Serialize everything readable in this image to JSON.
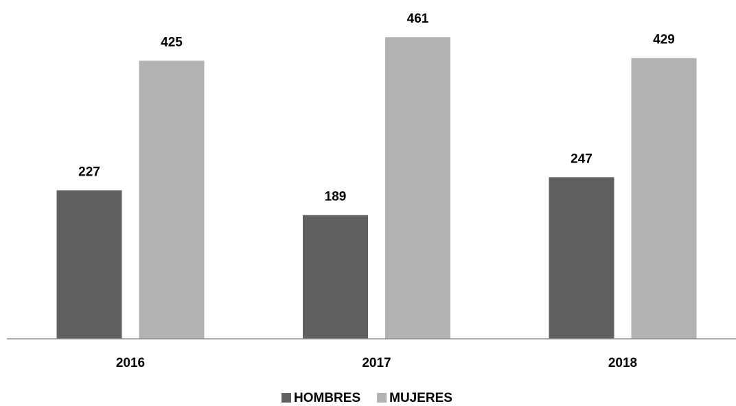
{
  "chart_data": {
    "type": "bar",
    "categories": [
      "2016",
      "2017",
      "2018"
    ],
    "series": [
      {
        "name": "HOMBRES",
        "color": "#606060",
        "values": [
          227,
          189,
          247
        ]
      },
      {
        "name": "MUJERES",
        "color": "#b2b2b2",
        "values": [
          425,
          461,
          429
        ]
      }
    ],
    "ylim": [
      0,
      500
    ],
    "legend": "bottom"
  }
}
